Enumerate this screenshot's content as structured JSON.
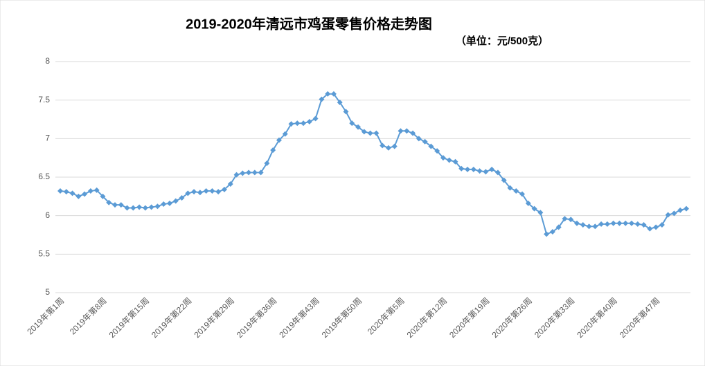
{
  "chart_data": {
    "type": "line",
    "title": "2019-2020年清远市鸡蛋零售价格走势图",
    "subtitle": "（单位：元/500克）",
    "categories": [
      "2019年第1周",
      null,
      null,
      null,
      null,
      null,
      null,
      "2019年第8周",
      null,
      null,
      null,
      null,
      null,
      null,
      "2019年第15周",
      null,
      null,
      null,
      null,
      null,
      null,
      "2019年第22周",
      null,
      null,
      null,
      null,
      null,
      null,
      "2019年第29周",
      null,
      null,
      null,
      null,
      null,
      null,
      "2019年第36周",
      null,
      null,
      null,
      null,
      null,
      null,
      "2019年第43周",
      null,
      null,
      null,
      null,
      null,
      null,
      "2019年第50周",
      null,
      null,
      null,
      null,
      null,
      null,
      "2020年第5周",
      null,
      null,
      null,
      null,
      null,
      null,
      "2020年第12周",
      null,
      null,
      null,
      null,
      null,
      null,
      "2020年第19周",
      null,
      null,
      null,
      null,
      null,
      null,
      "2020年第26周",
      null,
      null,
      null,
      null,
      null,
      null,
      "2020年第33周",
      null,
      null,
      null,
      null,
      null,
      null,
      "2020年第40周",
      null,
      null,
      null,
      null,
      null,
      null,
      "2020年第47周",
      null,
      null,
      null,
      null,
      null
    ],
    "series": [
      {
        "name": "鸡蛋零售价格",
        "color": "#5b9bd5",
        "values": [
          6.32,
          6.31,
          6.29,
          6.25,
          6.28,
          6.32,
          6.33,
          6.25,
          6.17,
          6.14,
          6.14,
          6.1,
          6.1,
          6.11,
          6.1,
          6.11,
          6.12,
          6.15,
          6.16,
          6.19,
          6.23,
          6.29,
          6.31,
          6.3,
          6.32,
          6.32,
          6.31,
          6.34,
          6.41,
          6.53,
          6.55,
          6.56,
          6.56,
          6.56,
          6.68,
          6.85,
          6.98,
          7.06,
          7.19,
          7.2,
          7.2,
          7.22,
          7.26,
          7.51,
          7.58,
          7.58,
          7.47,
          7.35,
          7.2,
          7.15,
          7.09,
          7.07,
          7.07,
          6.91,
          6.88,
          6.9,
          7.1,
          7.1,
          7.07,
          7.0,
          6.96,
          6.9,
          6.84,
          6.75,
          6.72,
          6.7,
          6.61,
          6.6,
          6.6,
          6.58,
          6.57,
          6.6,
          6.56,
          6.46,
          6.36,
          6.32,
          6.28,
          6.16,
          6.09,
          6.04,
          5.76,
          5.79,
          5.85,
          5.96,
          5.95,
          5.9,
          5.88,
          5.86,
          5.86,
          5.89,
          5.89,
          5.9,
          5.9,
          5.9,
          5.9,
          5.89,
          5.88,
          5.83,
          5.85,
          5.88,
          6.01,
          6.03,
          6.07,
          6.09
        ]
      }
    ],
    "ylim": [
      5,
      8
    ],
    "yticks": [
      5,
      5.5,
      6,
      6.5,
      7,
      7.5,
      8
    ],
    "grid": true
  }
}
